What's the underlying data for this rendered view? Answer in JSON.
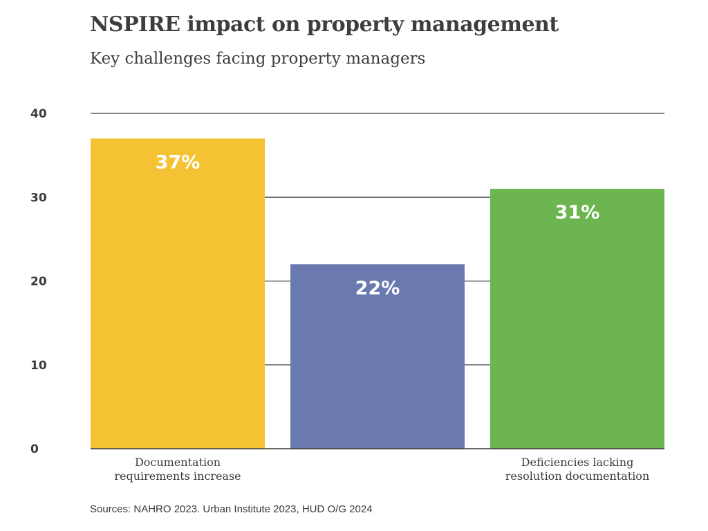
{
  "header": {
    "title": "NSPIRE impact on property management",
    "subtitle": "Key challenges facing property managers"
  },
  "footer": {
    "source": "Sources: NAHRO 2023. Urban Institute 2023, HUD O/G 2024"
  },
  "chart_data": {
    "type": "bar",
    "title": "NSPIRE impact on property management",
    "subtitle": "Key challenges facing property managers",
    "xlabel": "",
    "ylabel": "",
    "ylim": [
      0,
      40
    ],
    "yticks": [
      "0",
      "10",
      "20",
      "30",
      "40"
    ],
    "ytick_values": [
      0,
      10,
      20,
      30,
      40
    ],
    "grid": true,
    "legend": "none",
    "categories": [
      [
        "Documentation",
        "requirements increase"
      ],
      [],
      [
        "Deficiencies lacking",
        "resolution documentation"
      ]
    ],
    "values": [
      37,
      22,
      31
    ],
    "data_labels": [
      "37%",
      "22%",
      "31%"
    ],
    "colors": [
      "#f4c232",
      "#6a79b0",
      "#6db550"
    ],
    "gridline_color": "#3a3a3a",
    "axis_color": "#3a3a3a"
  }
}
